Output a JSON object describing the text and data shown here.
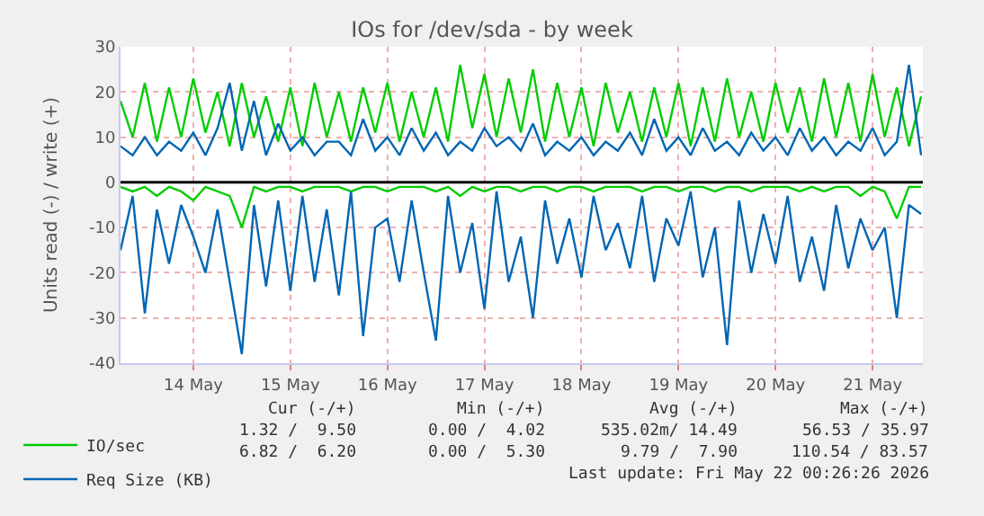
{
  "chart_data": {
    "type": "line",
    "title": "IOs for /dev/sda - by week",
    "ylabel": "Units read (-) / write (+)",
    "x": [
      "2026-05-13T18:00",
      "2026-05-13T21:00",
      "2026-05-14T00:00",
      "2026-05-14T03:00",
      "2026-05-14T06:00",
      "2026-05-14T09:00",
      "2026-05-14T12:00",
      "2026-05-14T15:00",
      "2026-05-14T18:00",
      "2026-05-14T21:00",
      "2026-05-15T00:00",
      "2026-05-15T03:00",
      "2026-05-15T06:00",
      "2026-05-15T09:00",
      "2026-05-15T12:00",
      "2026-05-15T15:00",
      "2026-05-15T18:00",
      "2026-05-15T21:00",
      "2026-05-16T00:00",
      "2026-05-16T03:00",
      "2026-05-16T06:00",
      "2026-05-16T09:00",
      "2026-05-16T12:00",
      "2026-05-16T15:00",
      "2026-05-16T18:00",
      "2026-05-16T21:00",
      "2026-05-17T00:00",
      "2026-05-17T03:00",
      "2026-05-17T06:00",
      "2026-05-17T09:00",
      "2026-05-17T12:00",
      "2026-05-17T15:00",
      "2026-05-17T18:00",
      "2026-05-17T21:00",
      "2026-05-18T00:00",
      "2026-05-18T03:00",
      "2026-05-18T06:00",
      "2026-05-18T09:00",
      "2026-05-18T12:00",
      "2026-05-18T15:00",
      "2026-05-18T18:00",
      "2026-05-18T21:00",
      "2026-05-19T00:00",
      "2026-05-19T03:00",
      "2026-05-19T06:00",
      "2026-05-19T09:00",
      "2026-05-19T12:00",
      "2026-05-19T15:00",
      "2026-05-19T18:00",
      "2026-05-19T21:00",
      "2026-05-20T00:00",
      "2026-05-20T03:00",
      "2026-05-20T06:00",
      "2026-05-20T09:00",
      "2026-05-20T12:00",
      "2026-05-20T15:00",
      "2026-05-20T18:00",
      "2026-05-20T21:00",
      "2026-05-21T00:00",
      "2026-05-21T03:00",
      "2026-05-21T06:00",
      "2026-05-21T09:00",
      "2026-05-21T12:00",
      "2026-05-21T15:00",
      "2026-05-21T18:00",
      "2026-05-21T21:00",
      "2026-05-22T00:00"
    ],
    "series": [
      {
        "name": "IO/sec",
        "color": "#00cc00",
        "values": [
          18,
          10,
          22,
          9,
          21,
          10,
          23,
          11,
          20,
          8,
          22,
          10,
          19,
          9,
          21,
          8,
          22,
          10,
          20,
          9,
          21,
          11,
          22,
          9,
          20,
          10,
          21,
          9,
          26,
          12,
          24,
          10,
          23,
          11,
          25,
          9,
          22,
          10,
          21,
          8,
          22,
          11,
          20,
          9,
          21,
          10,
          22,
          8,
          21,
          9,
          23,
          10,
          20,
          9,
          22,
          11,
          21,
          9,
          23,
          10,
          22,
          9,
          24,
          10,
          21,
          8,
          19
        ]
      },
      {
        "name": "Req Size (KB)",
        "color": "#0066b3",
        "values": [
          8,
          6,
          10,
          6,
          9,
          7,
          11,
          6,
          12,
          22,
          7,
          18,
          6,
          13,
          7,
          10,
          6,
          9,
          9,
          6,
          14,
          7,
          10,
          6,
          12,
          7,
          11,
          6,
          9,
          7,
          12,
          8,
          10,
          7,
          13,
          6,
          9,
          7,
          10,
          6,
          9,
          7,
          11,
          6,
          14,
          7,
          10,
          6,
          12,
          7,
          9,
          6,
          11,
          7,
          10,
          6,
          12,
          7,
          10,
          6,
          9,
          7,
          12,
          6,
          9,
          26,
          6
        ]
      },
      {
        "color": "#00cc00",
        "values": [
          -1,
          -2,
          -1,
          -3,
          -1,
          -2,
          -4,
          -1,
          -2,
          -3,
          -10,
          -1,
          -2,
          -1,
          -1,
          -2,
          -1,
          -1,
          -1,
          -2,
          -1,
          -1,
          -2,
          -1,
          -1,
          -1,
          -2,
          -1,
          -3,
          -1,
          -2,
          -1,
          -1,
          -2,
          -1,
          -1,
          -2,
          -1,
          -1,
          -2,
          -1,
          -1,
          -1,
          -2,
          -1,
          -1,
          -2,
          -1,
          -1,
          -2,
          -1,
          -1,
          -2,
          -1,
          -1,
          -1,
          -2,
          -1,
          -2,
          -1,
          -1,
          -3,
          -1,
          -2,
          -8,
          -1,
          -1
        ]
      },
      {
        "color": "#0066b3",
        "values": [
          -15,
          -3,
          -29,
          -6,
          -18,
          -5,
          -12,
          -20,
          -6,
          -22,
          -38,
          -5,
          -23,
          -4,
          -24,
          -3,
          -22,
          -6,
          -25,
          -2,
          -34,
          -10,
          -8,
          -22,
          -4,
          -20,
          -35,
          -3,
          -20,
          -9,
          -28,
          -2,
          -22,
          -12,
          -30,
          -4,
          -18,
          -8,
          -21,
          -3,
          -15,
          -9,
          -19,
          -3,
          -22,
          -8,
          -14,
          -2,
          -21,
          -10,
          -36,
          -4,
          -20,
          -7,
          -18,
          -3,
          -22,
          -12,
          -24,
          -5,
          -19,
          -8,
          -15,
          -10,
          -30,
          -5,
          -7
        ]
      }
    ],
    "xlim": [
      "2026-05-13T18:00",
      "2026-05-22T00:26"
    ],
    "xticks": [
      {
        "value": "2026-05-14T12:00",
        "label": "14 May"
      },
      {
        "value": "2026-05-15T12:00",
        "label": "15 May"
      },
      {
        "value": "2026-05-16T12:00",
        "label": "16 May"
      },
      {
        "value": "2026-05-17T12:00",
        "label": "17 May"
      },
      {
        "value": "2026-05-18T12:00",
        "label": "18 May"
      },
      {
        "value": "2026-05-19T12:00",
        "label": "19 May"
      },
      {
        "value": "2026-05-20T12:00",
        "label": "20 May"
      },
      {
        "value": "2026-05-21T12:00",
        "label": "21 May"
      }
    ],
    "ylim": [
      -40,
      30
    ],
    "yticks": [
      -40,
      -30,
      -20,
      -10,
      0,
      10,
      20,
      30
    ],
    "ref_lines": [
      {
        "axis": "y",
        "value": 0,
        "color": "#000000"
      }
    ],
    "grid": true,
    "legend": "bottom left",
    "marker": "none",
    "line_style": "solid",
    "annotations": [
      "Cur (-/+)",
      "Min (-/+)",
      "Avg (-/+)",
      "Max (-/+)",
      "1.32 /  9.50",
      "0.00 /  4.02",
      "535.02m/ 14.49",
      "56.53 / 35.97",
      "6.82 /  6.20",
      "0.00 /  5.30",
      "9.79 /  7.90",
      "110.54 / 83.57",
      "Last update: Fri May 22 00:26:26 2026"
    ]
  }
}
